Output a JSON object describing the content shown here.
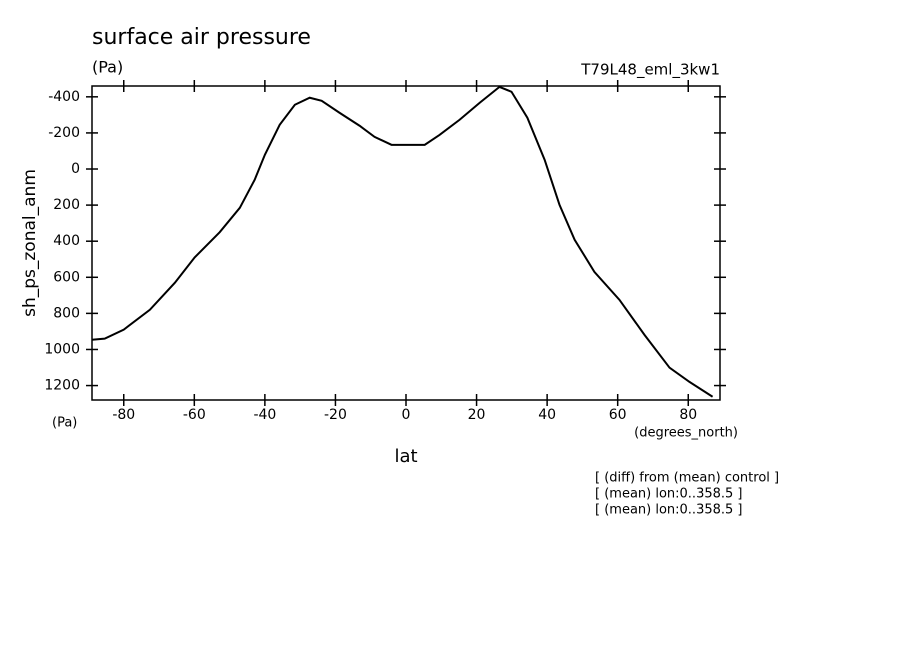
{
  "chart_data": {
    "type": "line",
    "title": "surface air pressure",
    "subtitle": "(Pa)",
    "run_label": "T79L48_eml_3kw1",
    "y_label": "sh_ps_zonal_anm",
    "y_unit": "(Pa)",
    "x_label": "lat",
    "x_unit": "(degrees_north)",
    "annotations": [
      "[ (diff) from (mean) control ]",
      "[ (mean) lon:0..358.5 ]",
      "[ (mean) lon:0..358.5 ]"
    ],
    "xlim": [
      -89,
      89
    ],
    "ylim": [
      1280,
      -460
    ],
    "xticks": [
      -80,
      -60,
      -40,
      -20,
      0,
      20,
      40,
      60,
      80
    ],
    "yticks": [
      -400,
      -200,
      0,
      200,
      400,
      600,
      800,
      1000,
      1200
    ],
    "x": [
      -89,
      -85.4,
      -80,
      -72.6,
      -65.5,
      -59.9,
      -52.8,
      -47.1,
      -42.9,
      -40,
      -35.8,
      -31.5,
      -27.3,
      -23.9,
      -18.8,
      -13.1,
      -8.9,
      -4.1,
      5.3,
      9.5,
      15.2,
      20.9,
      26.5,
      29.9,
      34.4,
      39.3,
      43.5,
      47.8,
      53.4,
      60.5,
      67.6,
      74.7,
      80.3,
      86.9
    ],
    "series": [
      {
        "color": "#000000",
        "values": [
          946,
          940,
          890,
          780,
          630,
          490,
          350,
          215,
          60,
          -79,
          -245,
          -356,
          -395,
          -378,
          -311,
          -239,
          -178,
          -134,
          -134,
          -189,
          -273,
          -367,
          -455,
          -428,
          -284,
          -51,
          198,
          392,
          570,
          725,
          919,
          1101,
          1179,
          1262
        ]
      }
    ]
  }
}
